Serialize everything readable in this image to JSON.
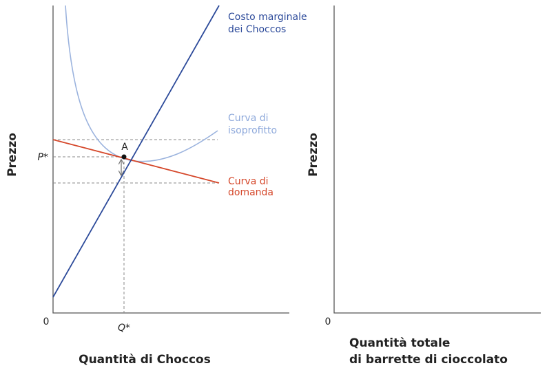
{
  "left_panel": {
    "y_label": "Prezzo",
    "x_label": "Quantità di Choccos",
    "origin": "0",
    "p_star": "P*",
    "q_star": "Q*",
    "point_label": "A",
    "marginal_cost_label": [
      "Costo marginale",
      "dei Choccos"
    ],
    "isoprofit_label": [
      "Curva di",
      "isoprofitto"
    ],
    "demand_label": [
      "Curva di",
      "domanda"
    ]
  },
  "right_panel": {
    "y_label": "Prezzo",
    "origin": "0",
    "x_label": [
      "Quantità totale",
      "di barrette di cioccolato"
    ]
  }
}
